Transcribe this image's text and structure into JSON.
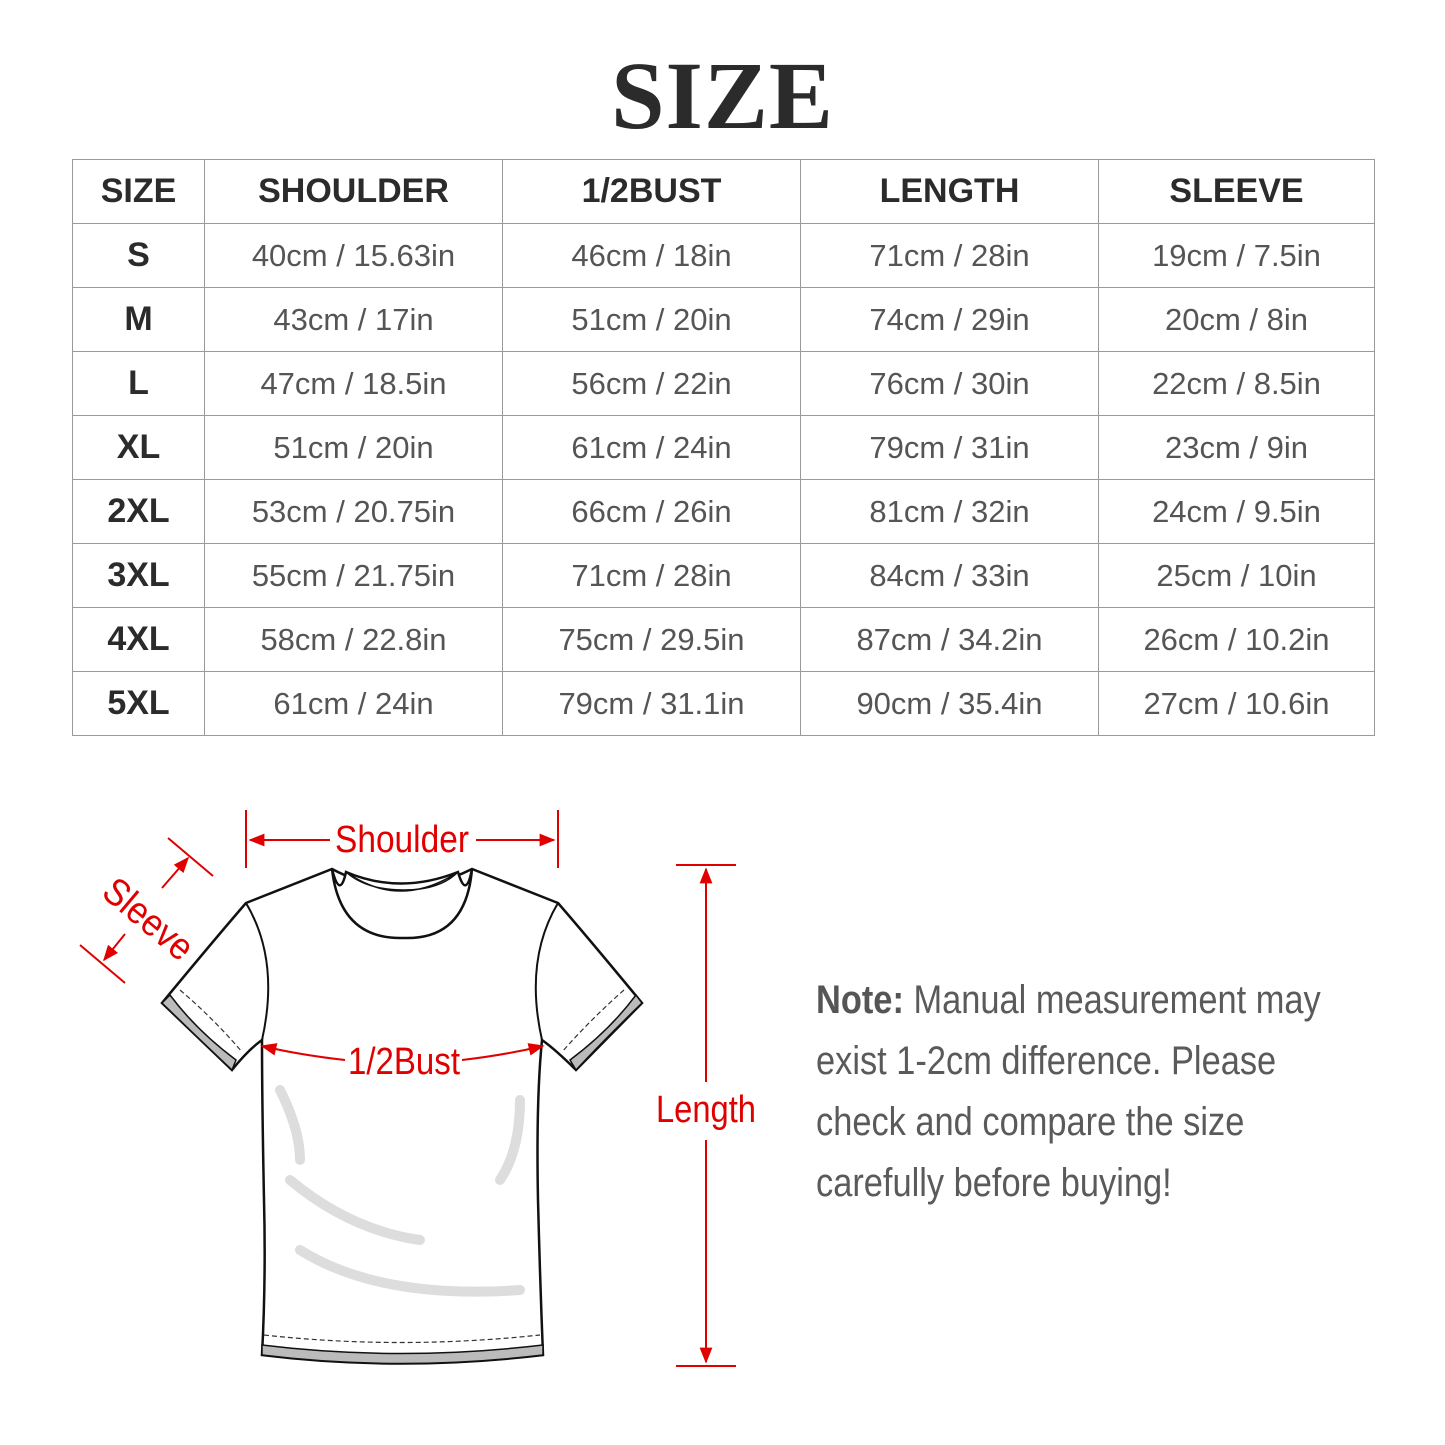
{
  "title": "SIZE",
  "table": {
    "headers": [
      "SIZE",
      "SHOULDER",
      "1/2BUST",
      "LENGTH",
      "SLEEVE"
    ],
    "rows": [
      [
        "S",
        "40cm / 15.63in",
        "46cm / 18in",
        "71cm / 28in",
        "19cm / 7.5in"
      ],
      [
        "M",
        "43cm / 17in",
        "51cm / 20in",
        "74cm / 29in",
        "20cm / 8in"
      ],
      [
        "L",
        "47cm / 18.5in",
        "56cm / 22in",
        "76cm / 30in",
        "22cm / 8.5in"
      ],
      [
        "XL",
        "51cm / 20in",
        "61cm / 24in",
        "79cm / 31in",
        "23cm / 9in"
      ],
      [
        "2XL",
        "53cm / 20.75in",
        "66cm / 26in",
        "81cm / 32in",
        "24cm / 9.5in"
      ],
      [
        "3XL",
        "55cm / 21.75in",
        "71cm / 28in",
        "84cm / 33in",
        "25cm / 10in"
      ],
      [
        "4XL",
        "58cm / 22.8in",
        "75cm / 29.5in",
        "87cm / 34.2in",
        "26cm / 10.2in"
      ],
      [
        "5XL",
        "61cm / 24in",
        "79cm / 31.1in",
        "90cm / 35.4in",
        "27cm / 10.6in"
      ]
    ]
  },
  "diagram": {
    "shoulder_label": "Shoulder",
    "sleeve_label": "Sleeve",
    "bust_label": "1/2Bust",
    "length_label": "Length",
    "accent_color": "#e00000"
  },
  "note": {
    "label": "Note:",
    "lines": [
      " Manual measurement may",
      "exist 1-2cm difference. Please",
      "check and compare the size",
      "carefully before buying!"
    ]
  }
}
